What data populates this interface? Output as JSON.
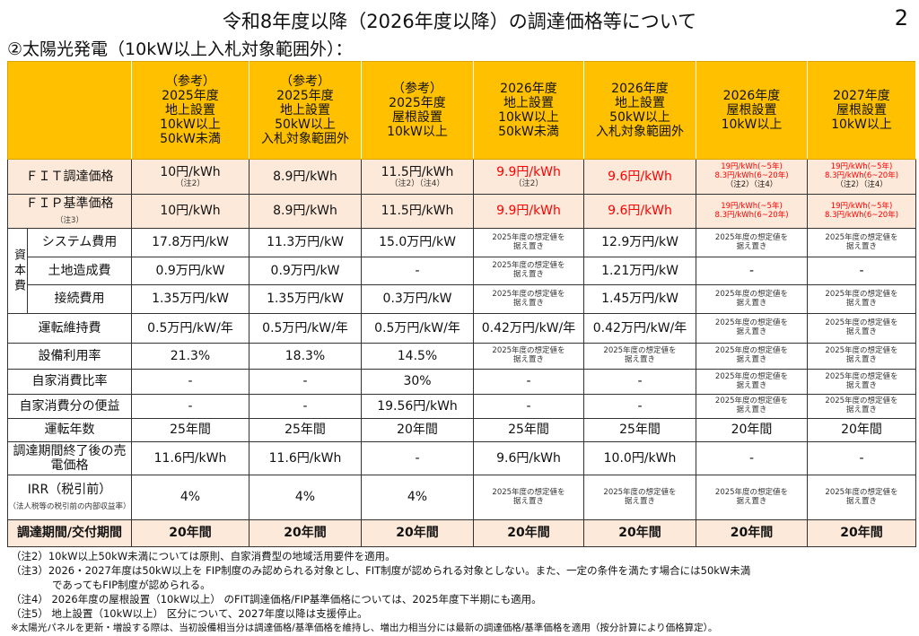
{
  "title": "令和8年度以降（2026年度以降）の調達価格等について",
  "page_number": "2",
  "subtitle": "②太陽光発電（10kW以上入札対象範囲外）：",
  "columns": [
    {
      "l1": "（参考）",
      "l2": "2025年度",
      "l3": "地上設置",
      "l4": "10kW以上",
      "l5": "50kW未満"
    },
    {
      "l1": "（参考）",
      "l2": "2025年度",
      "l3": "地上設置",
      "l4": "50kW以上",
      "l5": "入札対象範囲外"
    },
    {
      "l1": "（参考）",
      "l2": "2025年度",
      "l3": "屋根設置",
      "l4": "10kW以上",
      "l5": ""
    },
    {
      "l1": "2026年度",
      "l2": "地上設置",
      "l3": "10kW以上",
      "l4": "50kW未満",
      "l5": ""
    },
    {
      "l1": "2026年度",
      "l2": "地上設置",
      "l3": "50kW以上",
      "l4": "入札対象範囲外",
      "l5": ""
    },
    {
      "l1": "2026年度",
      "l2": "屋根設置",
      "l3": "10kW以上",
      "l4": "",
      "l5": ""
    },
    {
      "l1": "2027年度",
      "l2": "屋根設置",
      "l3": "10kW以上",
      "l4": "",
      "l5": ""
    }
  ],
  "fit": {
    "label": "ＦＩＴ調達価格",
    "v": [
      "10円/kWh",
      "8.9円/kWh",
      "11.5円/kWh",
      "9.9円/kWh",
      "9.6円/kWh"
    ],
    "n": [
      "（注2）",
      "",
      "（注2）（注4）",
      "（注2）",
      ""
    ],
    "tier1": "19円/kWh(~5年)",
    "tier2": "8.3円/kWh(6~20年)",
    "tnote": "（注2）（注4）"
  },
  "fip": {
    "label": "ＦＩＰ基準価格",
    "note": "（注3）",
    "v": [
      "10円/kWh",
      "8.9円/kWh",
      "11.5円/kWh",
      "9.9円/kWh",
      "9.6円/kWh"
    ],
    "tier1": "19円/kWh(~5年)",
    "tier2": "8.3円/kWh(6~20年)"
  },
  "capex_label": "資本費",
  "sue": "2025年度の想定値を",
  "sue2": "据え置き",
  "rows": {
    "system": {
      "label": "システム費用",
      "v": [
        "17.8万円/kW",
        "11.3万円/kW",
        "15.0万円/kW",
        "12.9万円/kW"
      ]
    },
    "land": {
      "label": "土地造成費",
      "v": [
        "0.9万円/kW",
        "0.9万円/kW",
        "-",
        "1.21万円/kW",
        "-",
        "-"
      ]
    },
    "connect": {
      "label": "接続費用",
      "v": [
        "1.35万円/kW",
        "1.35万円/kW",
        "0.3万円/kW",
        "1.45万円/kW"
      ]
    },
    "om": {
      "label": "運転維持費",
      "v": [
        "0.5万円/kW/年",
        "0.5万円/kW/年",
        "0.5万円/kW/年",
        "0.42万円/kW/年",
        "0.42万円/kW/年"
      ]
    },
    "util": {
      "label": "設備利用率",
      "v": [
        "21.3%",
        "18.3%",
        "14.5%"
      ]
    },
    "selfr": {
      "label": "自家消費比率",
      "v": [
        "-",
        "-",
        "30%",
        "-",
        "-"
      ]
    },
    "selfb": {
      "label": "自家消費分の便益",
      "v": [
        "-",
        "-",
        "19.56円/kWh",
        "-",
        "-"
      ]
    },
    "years": {
      "label": "運転年数",
      "v": [
        "25年間",
        "25年間",
        "20年間",
        "25年間",
        "25年間",
        "20年間",
        "20年間"
      ]
    },
    "sell": {
      "label": "調達期間終了後の売電価格",
      "v": [
        "11.6円/kWh",
        "11.6円/kWh",
        "-",
        "9.6円/kWh",
        "10.0円/kWh",
        "-",
        "-"
      ]
    },
    "irr": {
      "label": "IRR（税引前）",
      "sub": "（法人税等の税引前の内部収益率）",
      "v": [
        "4%",
        "4%",
        "4%"
      ]
    },
    "period": {
      "label": "調達期間/交付期間",
      "v": [
        "20年間",
        "20年間",
        "20年間",
        "20年間",
        "20年間",
        "20年間",
        "20年間"
      ]
    }
  },
  "footnotes": [
    "（注2）10kW以上50kW未満については原則、自家消費型の地域活用要件を適用。",
    "（注3）2026・2027年度は50kW以上を FIP制度のみ認められる対象とし、FIT制度が認められる対象としない。また、一定の条件を満たす場合には50kW未満",
    "　　　　であってもFIP制度が認められる。",
    "（注4） 2026年度の屋根設置（10kW以上） のFIT調達価格/FIP基準価格については、2025年度下半期にも適用。",
    "（注5） 地上設置（10kW以上） 区分について、2027年度以降は支援停止。",
    "※太陽光パネルを更新・増設する際は、当初設備相当分は調達価格/基準価格を維持し、増出力相当分には最新の調達価格/基準価格を適用（按分計算により価格算定）。"
  ]
}
